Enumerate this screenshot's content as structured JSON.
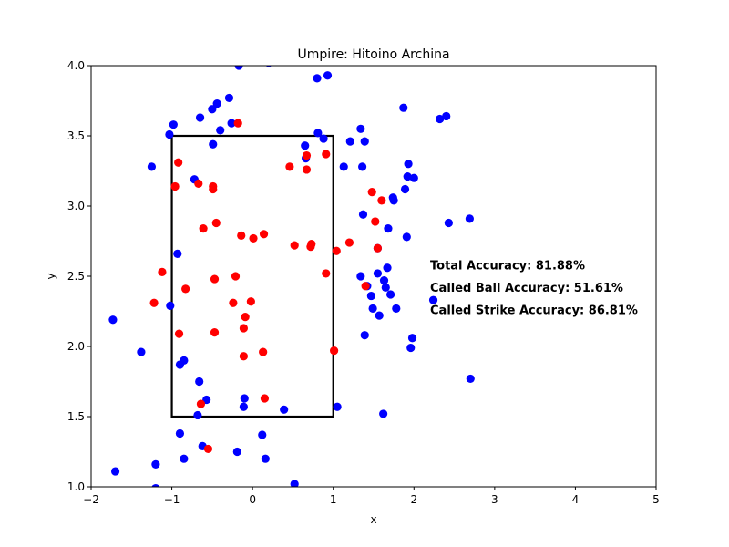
{
  "chart_data": {
    "type": "scatter",
    "title": "Umpire: Hitoino Archina",
    "xlabel": "x",
    "ylabel": "y",
    "xlim": [
      -2,
      5
    ],
    "ylim": [
      1.0,
      4.0
    ],
    "x_ticks": [
      -2,
      -1,
      0,
      1,
      2,
      3,
      4,
      5
    ],
    "y_ticks": [
      1.0,
      1.5,
      2.0,
      2.5,
      3.0,
      3.5,
      4.0
    ],
    "x_tick_labels": [
      "−2",
      "−1",
      "0",
      "1",
      "2",
      "3",
      "4",
      "5"
    ],
    "y_tick_labels": [
      "1.0",
      "1.5",
      "2.0",
      "2.5",
      "3.0",
      "3.5",
      "4.0"
    ],
    "grid": false,
    "strike_zone": {
      "x": [
        -1,
        1
      ],
      "y": [
        1.5,
        3.5
      ],
      "color": "#000000"
    },
    "annotations": [
      "Total Accuracy: 81.88%",
      "Called Ball Accuracy: 51.61%",
      "Called Strike Accuracy: 86.81%"
    ],
    "annotation_anchor": {
      "x": 2.2,
      "y": 2.55
    },
    "series": [
      {
        "color": "#0000ff",
        "points": [
          [
            -0.98,
            3.58
          ],
          [
            -1.03,
            3.51
          ],
          [
            -0.65,
            3.63
          ],
          [
            -0.5,
            3.69
          ],
          [
            -0.44,
            3.73
          ],
          [
            -0.29,
            3.77
          ],
          [
            -0.26,
            3.59
          ],
          [
            -0.4,
            3.54
          ],
          [
            -0.49,
            3.44
          ],
          [
            -1.25,
            3.28
          ],
          [
            -0.17,
            4.0
          ],
          [
            0.2,
            4.02
          ],
          [
            0.8,
            3.91
          ],
          [
            0.93,
            3.93
          ],
          [
            0.81,
            3.52
          ],
          [
            0.88,
            3.48
          ],
          [
            0.65,
            3.43
          ],
          [
            0.66,
            3.34
          ],
          [
            1.34,
            3.55
          ],
          [
            1.21,
            3.46
          ],
          [
            1.39,
            3.46
          ],
          [
            1.13,
            3.28
          ],
          [
            1.36,
            3.28
          ],
          [
            1.87,
            3.7
          ],
          [
            2.32,
            3.62
          ],
          [
            2.4,
            3.64
          ],
          [
            1.93,
            3.3
          ],
          [
            1.92,
            3.21
          ],
          [
            2.0,
            3.2
          ],
          [
            1.89,
            3.12
          ],
          [
            1.74,
            3.06
          ],
          [
            1.75,
            3.04
          ],
          [
            1.37,
            2.94
          ],
          [
            1.68,
            2.84
          ],
          [
            2.43,
            2.88
          ],
          [
            2.69,
            2.91
          ],
          [
            1.91,
            2.78
          ],
          [
            1.55,
            2.7
          ],
          [
            1.67,
            2.56
          ],
          [
            1.55,
            2.52
          ],
          [
            1.34,
            2.5
          ],
          [
            1.63,
            2.47
          ],
          [
            1.42,
            2.43
          ],
          [
            1.65,
            2.42
          ],
          [
            1.71,
            2.37
          ],
          [
            1.47,
            2.36
          ],
          [
            1.49,
            2.27
          ],
          [
            1.78,
            2.27
          ],
          [
            1.57,
            2.22
          ],
          [
            2.24,
            2.33
          ],
          [
            -0.72,
            3.19
          ],
          [
            -0.93,
            2.66
          ],
          [
            -1.02,
            2.29
          ],
          [
            -1.73,
            2.19
          ],
          [
            -1.38,
            1.96
          ],
          [
            1.39,
            2.08
          ],
          [
            1.96,
            1.99
          ],
          [
            1.98,
            2.06
          ],
          [
            2.7,
            1.77
          ],
          [
            -0.9,
            1.87
          ],
          [
            -0.85,
            1.9
          ],
          [
            -0.66,
            1.75
          ],
          [
            -0.57,
            1.62
          ],
          [
            -0.1,
            1.63
          ],
          [
            -0.11,
            1.57
          ],
          [
            0.39,
            1.55
          ],
          [
            1.05,
            1.57
          ],
          [
            -0.68,
            1.51
          ],
          [
            1.62,
            1.52
          ],
          [
            -0.9,
            1.38
          ],
          [
            0.12,
            1.37
          ],
          [
            -0.62,
            1.29
          ],
          [
            -0.19,
            1.25
          ],
          [
            -0.85,
            1.2
          ],
          [
            0.16,
            1.2
          ],
          [
            -1.7,
            1.11
          ],
          [
            -1.2,
            1.16
          ],
          [
            0.52,
            1.02
          ],
          [
            -1.2,
            0.99
          ]
        ]
      },
      {
        "color": "#ff0000",
        "points": [
          [
            -0.18,
            3.59
          ],
          [
            -0.92,
            3.31
          ],
          [
            -0.67,
            3.16
          ],
          [
            -0.49,
            3.14
          ],
          [
            -0.49,
            3.12
          ],
          [
            -0.96,
            3.14
          ],
          [
            0.46,
            3.28
          ],
          [
            0.67,
            3.26
          ],
          [
            0.67,
            3.36
          ],
          [
            0.91,
            3.37
          ],
          [
            1.48,
            3.1
          ],
          [
            1.6,
            3.04
          ],
          [
            1.52,
            2.89
          ],
          [
            -0.45,
            2.88
          ],
          [
            -0.61,
            2.84
          ],
          [
            -0.14,
            2.79
          ],
          [
            0.14,
            2.8
          ],
          [
            0.01,
            2.77
          ],
          [
            0.52,
            2.72
          ],
          [
            0.72,
            2.71
          ],
          [
            0.73,
            2.73
          ],
          [
            1.04,
            2.68
          ],
          [
            1.2,
            2.74
          ],
          [
            1.55,
            2.7
          ],
          [
            -1.12,
            2.53
          ],
          [
            -0.47,
            2.48
          ],
          [
            -0.21,
            2.5
          ],
          [
            0.91,
            2.52
          ],
          [
            1.4,
            2.43
          ],
          [
            -0.83,
            2.41
          ],
          [
            -1.22,
            2.31
          ],
          [
            -0.24,
            2.31
          ],
          [
            -0.02,
            2.32
          ],
          [
            -0.09,
            2.21
          ],
          [
            -0.11,
            2.13
          ],
          [
            -0.91,
            2.09
          ],
          [
            -0.47,
            2.1
          ],
          [
            0.13,
            1.96
          ],
          [
            1.01,
            1.97
          ],
          [
            -0.11,
            1.93
          ],
          [
            0.15,
            1.63
          ],
          [
            -0.64,
            1.59
          ],
          [
            -0.55,
            1.27
          ]
        ]
      }
    ]
  }
}
